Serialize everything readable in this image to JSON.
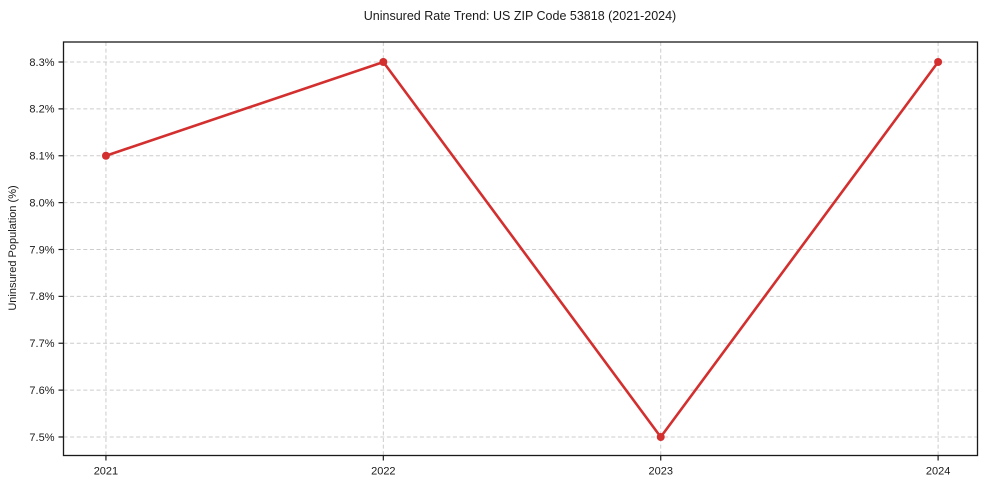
{
  "chart_data": {
    "type": "line",
    "title": "Uninsured Rate Trend: US ZIP Code 53818 (2021-2024)",
    "xlabel": "",
    "ylabel": "Uninsured Population (%)",
    "x": [
      2021,
      2022,
      2023,
      2024
    ],
    "x_tick_labels": [
      "2021",
      "2022",
      "2023",
      "2024"
    ],
    "series": [
      {
        "name": "Uninsured Population (%)",
        "values": [
          8.1,
          8.3,
          7.5,
          8.3
        ]
      }
    ],
    "y_ticks": [
      7.5,
      7.6,
      7.7,
      7.8,
      7.9,
      8.0,
      8.1,
      8.2,
      8.3
    ],
    "y_tick_labels": [
      "7.5%",
      "7.6%",
      "7.7%",
      "7.8%",
      "7.9%",
      "8.0%",
      "8.1%",
      "8.2%",
      "8.3%"
    ],
    "xlim": [
      2020.847,
      2024.142
    ],
    "ylim": [
      7.4605,
      8.3427
    ],
    "grid": true,
    "grid_style": "dashed",
    "grid_color": "#cccccc",
    "line_color": "#d32f2f",
    "marker": "circle",
    "marker_radius": 4,
    "legend_position": "none"
  }
}
